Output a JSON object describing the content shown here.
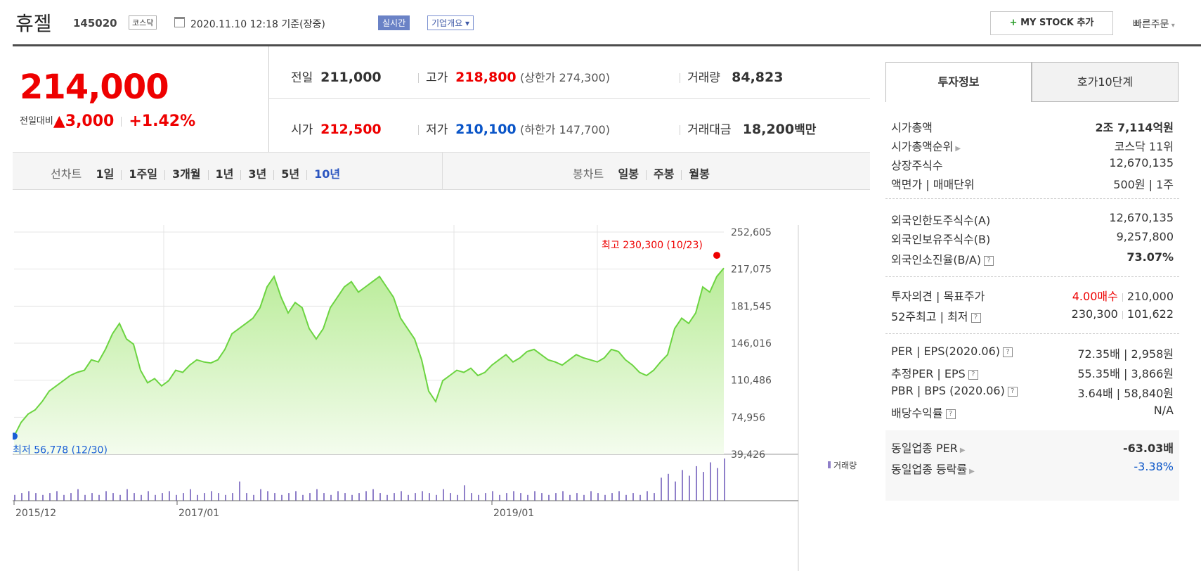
{
  "header": {
    "name": "휴젤",
    "code": "145020",
    "market": "코스닥",
    "datetime": "2020.11.10 12:18",
    "basis": "기준(장중)",
    "realtime_label": "실시간",
    "company_label": "기업개요",
    "mystock_label": "MY STOCK 추가",
    "quick_order_label": "빠른주문"
  },
  "price": {
    "current": "214,000",
    "change_label": "전일대비",
    "change": "3,000",
    "change_pct": "+1.42%"
  },
  "quote": {
    "prev_label": "전일",
    "prev": "211,000",
    "high_label": "고가",
    "high": "218,800",
    "upper_limit": "(상한가 274,300)",
    "volume_label": "거래량",
    "volume": "84,823",
    "open_label": "시가",
    "open": "212,500",
    "low_label": "저가",
    "low": "210,100",
    "lower_limit": "(하한가 147,700)",
    "amount_label": "거래대금",
    "amount": "18,200",
    "amount_unit": "백만"
  },
  "tabs": {
    "line_label": "선차트",
    "line_periods": [
      "1일",
      "1주일",
      "3개월",
      "1년",
      "3년",
      "5년",
      "10년"
    ],
    "active": "10년",
    "candle_label": "봉차트",
    "candle_periods": [
      "일봉",
      "주봉",
      "월봉"
    ]
  },
  "chart_data": {
    "type": "area",
    "y_ticks": [
      "252,605",
      "217,075",
      "181,545",
      "146,016",
      "110,486",
      "74,956",
      "39,426"
    ],
    "ylim": [
      39426,
      252605
    ],
    "x_labels": [
      "2015/12",
      "2017/01",
      "2019/01"
    ],
    "max_label": "최고 230,300 (10/23)",
    "min_label": "최저 56,778 (12/30)",
    "volume_legend": "거래량",
    "line_color": "#7ed957",
    "fill_color": "#d8f5c0",
    "values": [
      56778,
      70000,
      78000,
      82000,
      90000,
      100000,
      105000,
      110000,
      115000,
      118000,
      120000,
      130000,
      128000,
      140000,
      155000,
      165000,
      150000,
      145000,
      120000,
      108000,
      112000,
      105000,
      110000,
      120000,
      118000,
      125000,
      130000,
      128000,
      127000,
      130000,
      140000,
      155000,
      160000,
      165000,
      170000,
      180000,
      200000,
      210000,
      190000,
      175000,
      185000,
      180000,
      160000,
      150000,
      160000,
      180000,
      190000,
      200000,
      205000,
      195000,
      200000,
      205000,
      210000,
      200000,
      190000,
      170000,
      160000,
      150000,
      130000,
      100000,
      90000,
      110000,
      115000,
      120000,
      118000,
      122000,
      115000,
      118000,
      125000,
      130000,
      135000,
      128000,
      132000,
      138000,
      140000,
      135000,
      130000,
      128000,
      125000,
      130000,
      135000,
      132000,
      130000,
      128000,
      132000,
      140000,
      138000,
      130000,
      125000,
      118000,
      115000,
      120000,
      128000,
      135000,
      160000,
      170000,
      165000,
      175000,
      200000,
      195000,
      210000,
      218000
    ],
    "volumes": [
      3,
      4,
      5,
      4,
      3,
      4,
      5,
      3,
      4,
      6,
      3,
      4,
      3,
      5,
      4,
      3,
      6,
      4,
      3,
      5,
      3,
      4,
      5,
      3,
      4,
      6,
      3,
      4,
      5,
      4,
      3,
      4,
      10,
      4,
      3,
      6,
      5,
      4,
      3,
      4,
      5,
      3,
      4,
      6,
      4,
      3,
      5,
      4,
      3,
      4,
      5,
      6,
      4,
      3,
      4,
      5,
      3,
      4,
      5,
      4,
      3,
      6,
      4,
      3,
      8,
      4,
      3,
      4,
      5,
      3,
      4,
      5,
      4,
      3,
      5,
      4,
      3,
      4,
      5,
      3,
      4,
      3,
      5,
      4,
      3,
      4,
      5,
      3,
      4,
      3,
      5,
      4,
      12,
      14,
      10,
      16,
      13,
      18,
      15,
      20,
      17,
      22
    ]
  },
  "side": {
    "tab_info": "투자정보",
    "tab_ask": "호가10단계",
    "rows1": [
      {
        "label": "시가총액",
        "value": "2조 7,114억원"
      },
      {
        "label": "시가총액순위",
        "value": "코스닥 11위"
      },
      {
        "label": "상장주식수",
        "value": "12,670,135"
      },
      {
        "label": "액면가 | 매매단위",
        "value": "500원 | 1주"
      }
    ],
    "rows2": [
      {
        "label": "외국인한도주식수(A)",
        "value": "12,670,135"
      },
      {
        "label": "외국인보유주식수(B)",
        "value": "9,257,800"
      },
      {
        "label": "외국인소진율(B/A)",
        "value": "73.07%"
      }
    ],
    "rows3": [
      {
        "label": "투자의견 | 목표주가",
        "value_a": "4.00매수",
        "value_b": "210,000"
      },
      {
        "label": "52주최고 | 최저",
        "value_a": "230,300",
        "value_b": "101,622"
      }
    ],
    "rows4": [
      {
        "label": "PER | EPS(2020.06)",
        "value": "72.35배 | 2,958원"
      },
      {
        "label": "추정PER | EPS",
        "value": "55.35배 | 3,866원"
      },
      {
        "label": "PBR | BPS (2020.06)",
        "value": "3.64배 | 58,840원"
      },
      {
        "label": "배당수익률",
        "value": "N/A"
      }
    ],
    "rows5": [
      {
        "label": "동일업종 PER",
        "value": "-63.03배"
      },
      {
        "label": "동일업종 등락률",
        "value": "-3.38%"
      }
    ]
  }
}
